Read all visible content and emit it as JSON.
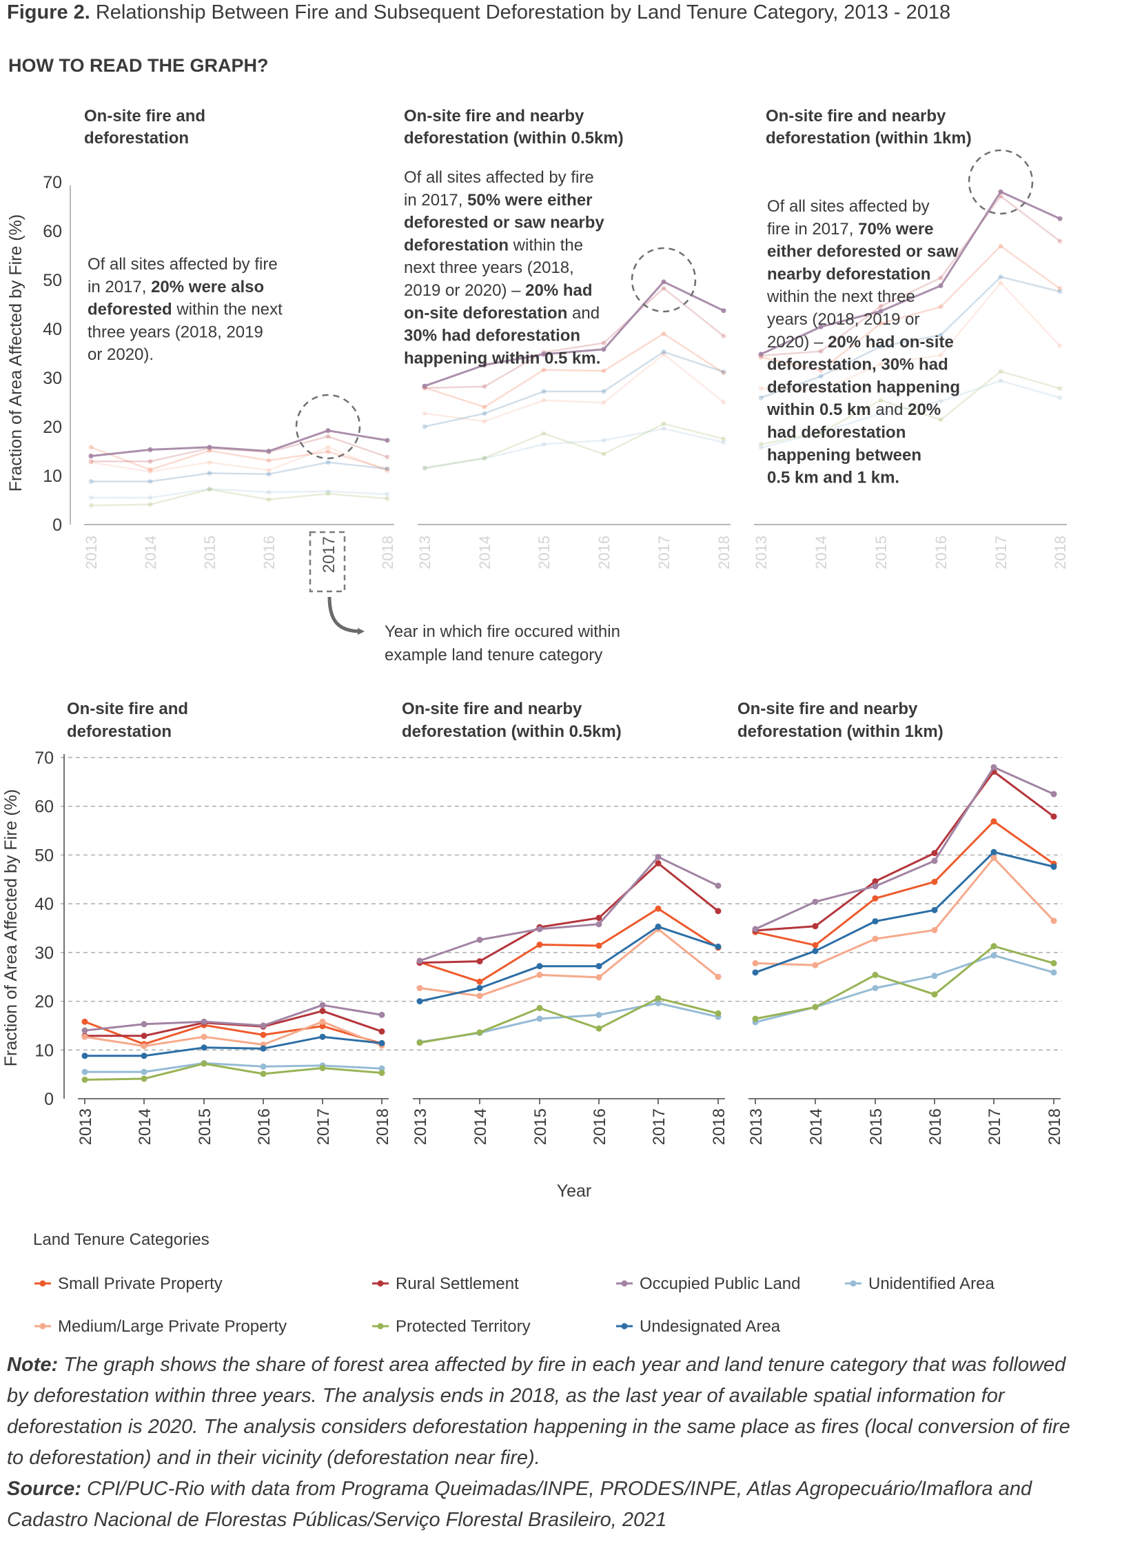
{
  "figure": {
    "label": "Figure 2.",
    "title": "Relationship Between Fire and Subsequent Deforestation by Land Tenure Category, 2013 - 2018"
  },
  "how_to_read": {
    "heading": "HOW TO READ THE GRAPH?",
    "panel_titles": [
      [
        "On-site fire and",
        "deforestation"
      ],
      [
        "On-site fire and nearby",
        "deforestation (within 0.5km)"
      ],
      [
        "On-site fire and nearby",
        "deforestation (within 1km)"
      ]
    ],
    "annotations": [
      [
        [
          {
            "t": "Of all sites affected by fire",
            "b": false
          }
        ],
        [
          {
            "t": "in 2017, ",
            "b": false
          },
          {
            "t": "20% were also",
            "b": true
          }
        ],
        [
          {
            "t": "deforested",
            "b": true
          },
          {
            "t": " within the next",
            "b": false
          }
        ],
        [
          {
            "t": "three years (2018, 2019",
            "b": false
          }
        ],
        [
          {
            "t": "or 2020).",
            "b": false
          }
        ]
      ],
      [
        [
          {
            "t": "Of all sites affected by fire",
            "b": false
          }
        ],
        [
          {
            "t": "in 2017, ",
            "b": false
          },
          {
            "t": "50% were either",
            "b": true
          }
        ],
        [
          {
            "t": "deforested or saw nearby",
            "b": true
          }
        ],
        [
          {
            "t": "deforestation",
            "b": true
          },
          {
            "t": " within the",
            "b": false
          }
        ],
        [
          {
            "t": "next three years (2018,",
            "b": false
          }
        ],
        [
          {
            "t": "2019 or 2020) – ",
            "b": false
          },
          {
            "t": "20% had",
            "b": true
          }
        ],
        [
          {
            "t": "on-site deforestation",
            "b": true
          },
          {
            "t": " and",
            "b": false
          }
        ],
        [
          {
            "t": "30% had deforestation",
            "b": true
          }
        ],
        [
          {
            "t": "happening within 0.5 km.",
            "b": true
          }
        ]
      ],
      [
        [
          {
            "t": "Of all sites affected by",
            "b": false
          }
        ],
        [
          {
            "t": "fire in 2017, ",
            "b": false
          },
          {
            "t": "70% were",
            "b": true
          }
        ],
        [
          {
            "t": "either deforested or saw",
            "b": true
          }
        ],
        [
          {
            "t": "nearby deforestation",
            "b": true
          }
        ],
        [
          {
            "t": "within the next three",
            "b": false
          }
        ],
        [
          {
            "t": "years (2018, 2019 or",
            "b": false
          }
        ],
        [
          {
            "t": "2020) – ",
            "b": false
          },
          {
            "t": "20% had on-site",
            "b": true
          }
        ],
        [
          {
            "t": "deforestation, 30% had",
            "b": true
          }
        ],
        [
          {
            "t": "deforestation happening",
            "b": true
          }
        ],
        [
          {
            "t": "within 0.5 km",
            "b": true
          },
          {
            "t": " and ",
            "b": false
          },
          {
            "t": "20%",
            "b": true
          }
        ],
        [
          {
            "t": "had deforestation",
            "b": true
          }
        ],
        [
          {
            "t": "happening between",
            "b": true
          }
        ],
        [
          {
            "t": "0.5 km and 1 km.",
            "b": true
          }
        ]
      ]
    ],
    "highlight_year": "2017",
    "arrow_caption": [
      "Year in which fire occured within",
      "example land tenure category"
    ]
  },
  "chart_data": {
    "type": "line",
    "ylabel": "Fraction of Area Affected by Fire (%)",
    "xlabel": "Year",
    "ylim": [
      0,
      70
    ],
    "yticks": [
      0,
      10,
      20,
      30,
      40,
      50,
      60,
      70
    ],
    "grid": true,
    "x": [
      "2013",
      "2014",
      "2015",
      "2016",
      "2017",
      "2018"
    ],
    "panels": [
      {
        "title": [
          "On-site fire and",
          "deforestation"
        ],
        "series": [
          {
            "name": "Small Private Property",
            "values": [
              15.8,
              11.2,
              15.1,
              13.1,
              14.9,
              11.3
            ]
          },
          {
            "name": "Rural Settlement",
            "values": [
              12.9,
              12.9,
              15.6,
              14.8,
              18.0,
              13.8
            ]
          },
          {
            "name": "Occupied Public Land",
            "values": [
              14.0,
              15.3,
              15.8,
              15.0,
              19.2,
              17.2
            ]
          },
          {
            "name": "Unidentified Area",
            "values": [
              5.5,
              5.5,
              7.3,
              6.6,
              6.8,
              6.2
            ]
          },
          {
            "name": "Medium/Large Private Property",
            "values": [
              12.7,
              10.8,
              12.7,
              11.1,
              15.8,
              10.9
            ]
          },
          {
            "name": "Protected Territory",
            "values": [
              3.9,
              4.1,
              7.2,
              5.1,
              6.3,
              5.3
            ]
          },
          {
            "name": "Undesignated Area",
            "values": [
              8.8,
              8.8,
              10.5,
              10.3,
              12.7,
              11.4
            ]
          }
        ]
      },
      {
        "title": [
          "On-site fire and nearby",
          "deforestation (within 0.5km)"
        ],
        "series": [
          {
            "name": "Small Private Property",
            "values": [
              28.0,
              24.0,
              31.6,
              31.4,
              39.0,
              31.0
            ]
          },
          {
            "name": "Rural Settlement",
            "values": [
              27.9,
              28.2,
              35.2,
              37.1,
              48.3,
              38.5
            ]
          },
          {
            "name": "Occupied Public Land",
            "values": [
              28.3,
              32.6,
              34.8,
              35.8,
              49.6,
              43.7
            ]
          },
          {
            "name": "Unidentified Area",
            "values": [
              11.6,
              13.5,
              16.4,
              17.2,
              19.6,
              16.8
            ]
          },
          {
            "name": "Medium/Large Private Property",
            "values": [
              22.7,
              21.1,
              25.4,
              24.9,
              34.8,
              25.0
            ]
          },
          {
            "name": "Protected Territory",
            "values": [
              11.5,
              13.6,
              18.6,
              14.4,
              20.6,
              17.5
            ]
          },
          {
            "name": "Undesignated Area",
            "values": [
              20.0,
              22.7,
              27.2,
              27.2,
              35.3,
              31.2
            ]
          }
        ]
      },
      {
        "title": [
          "On-site fire and nearby",
          "deforestation (within 1km)"
        ],
        "series": [
          {
            "name": "Small Private Property",
            "values": [
              34.2,
              31.5,
              41.1,
              44.5,
              56.9,
              48.2
            ]
          },
          {
            "name": "Rural Settlement",
            "values": [
              34.5,
              35.4,
              44.6,
              50.4,
              67.1,
              57.9
            ]
          },
          {
            "name": "Occupied Public Land",
            "values": [
              34.8,
              40.4,
              43.6,
              48.8,
              68.0,
              62.5
            ]
          },
          {
            "name": "Unidentified Area",
            "values": [
              15.7,
              18.8,
              22.7,
              25.2,
              29.4,
              25.9
            ]
          },
          {
            "name": "Medium/Large Private Property",
            "values": [
              27.8,
              27.4,
              32.8,
              34.6,
              49.4,
              36.5
            ]
          },
          {
            "name": "Protected Territory",
            "values": [
              16.4,
              18.8,
              25.4,
              21.4,
              31.3,
              27.8
            ]
          },
          {
            "name": "Undesignated Area",
            "values": [
              25.9,
              30.3,
              36.4,
              38.7,
              50.6,
              47.6
            ]
          }
        ]
      }
    ]
  },
  "legend": {
    "title": "Land Tenure Categories",
    "items": [
      {
        "name": "Small Private Property",
        "color": "#ee5a2c"
      },
      {
        "name": "Rural Settlement",
        "color": "#b5353b"
      },
      {
        "name": "Occupied Public Land",
        "color": "#a283a2"
      },
      {
        "name": "Unidentified Area",
        "color": "#96bbd5"
      },
      {
        "name": "Medium/Large Private Property",
        "color": "#f6a98b"
      },
      {
        "name": "Protected Territory",
        "color": "#98b355"
      },
      {
        "name": "Undesignated Area",
        "color": "#2c6ea5"
      }
    ]
  },
  "notes": {
    "note_label": "Note:",
    "note_text": "The graph shows the share of forest area affected by fire in each year and land tenure category that was followed by deforestation within three years. The analysis ends in 2018, as the last year of available spatial information for deforestation is 2020. The analysis considers deforestation happening in the same place as fires (local conversion of fire to deforestation) and in their vicinity (deforestation near fire).",
    "source_label": "Source:",
    "source_text": "CPI/PUC-Rio with data from Programa Queimadas/INPE, PRODES/INPE, Atlas Agropecuário/Imaflora and Cadastro Nacional de Florestas Públicas/Serviço Florestal Brasileiro, 2021"
  }
}
